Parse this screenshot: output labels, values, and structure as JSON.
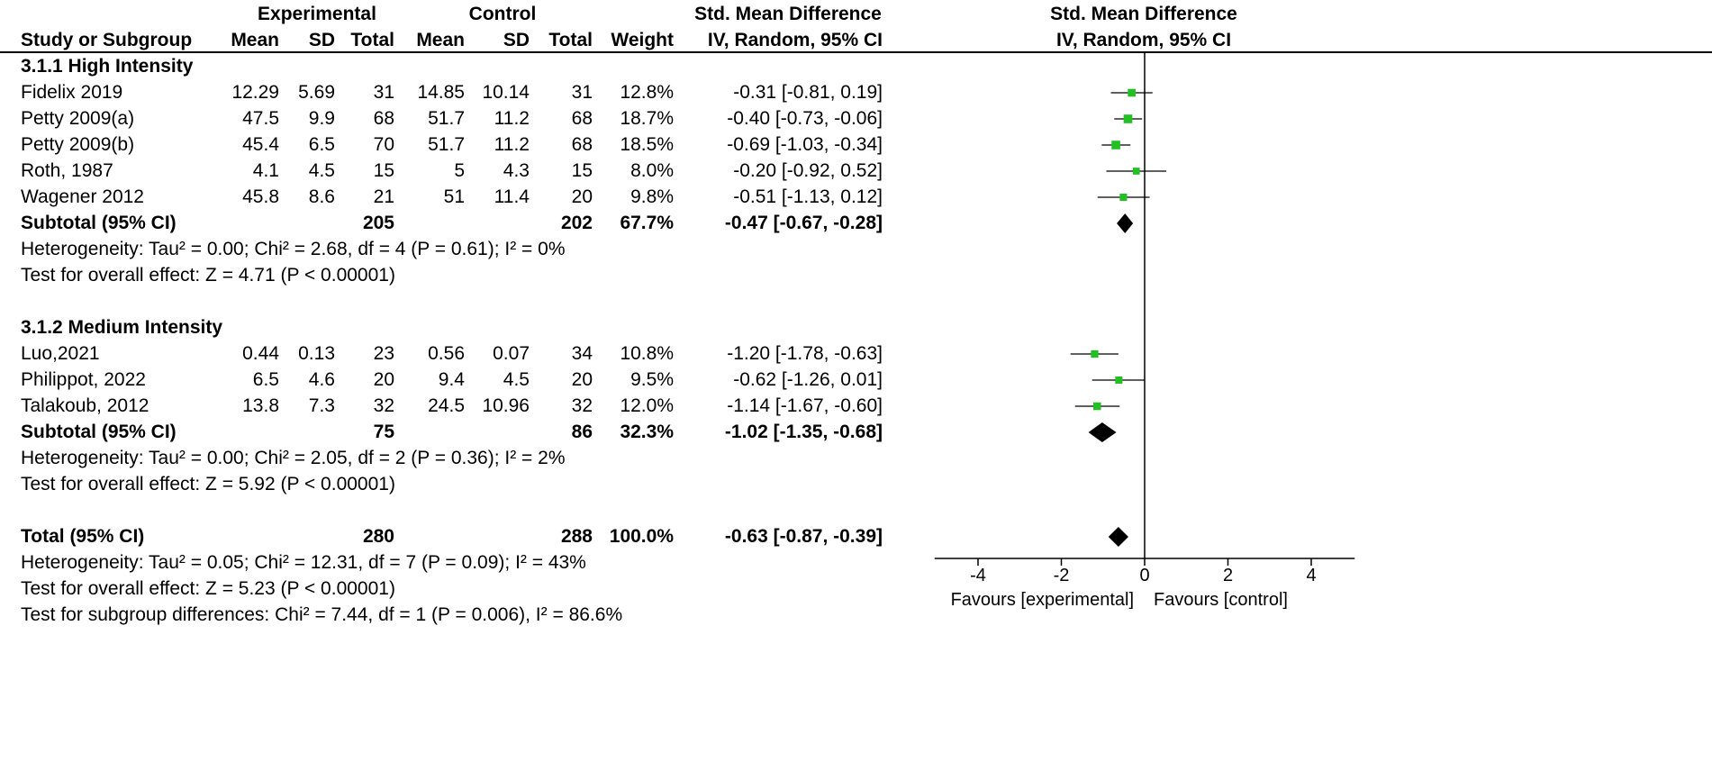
{
  "headers": {
    "group_experimental": "Experimental",
    "group_control": "Control",
    "group_smd": "Std. Mean Difference",
    "col_study": "Study or Subgroup",
    "col_mean": "Mean",
    "col_sd": "SD",
    "col_total": "Total",
    "col_weight": "Weight",
    "col_ci": "IV, Random, 95% CI",
    "plot_title": "Std. Mean Difference",
    "plot_subtitle": "IV, Random, 95% CI"
  },
  "rows": [
    {
      "kind": "section",
      "label": "3.1.1 High Intensity"
    },
    {
      "kind": "study",
      "label": "Fidelix 2019",
      "e_mean": "12.29",
      "e_sd": "5.69",
      "e_total": "31",
      "c_mean": "14.85",
      "c_sd": "10.14",
      "c_total": "31",
      "weight": "12.8%",
      "ci": "-0.31 [-0.81, 0.19]"
    },
    {
      "kind": "study",
      "label": "Petty 2009(a)",
      "e_mean": "47.5",
      "e_sd": "9.9",
      "e_total": "68",
      "c_mean": "51.7",
      "c_sd": "11.2",
      "c_total": "68",
      "weight": "18.7%",
      "ci": "-0.40 [-0.73, -0.06]"
    },
    {
      "kind": "study",
      "label": "Petty 2009(b)",
      "e_mean": "45.4",
      "e_sd": "6.5",
      "e_total": "70",
      "c_mean": "51.7",
      "c_sd": "11.2",
      "c_total": "68",
      "weight": "18.5%",
      "ci": "-0.69 [-1.03, -0.34]"
    },
    {
      "kind": "study",
      "label": "Roth, 1987",
      "e_mean": "4.1",
      "e_sd": "4.5",
      "e_total": "15",
      "c_mean": "5",
      "c_sd": "4.3",
      "c_total": "15",
      "weight": "8.0%",
      "ci": "-0.20 [-0.92, 0.52]"
    },
    {
      "kind": "study",
      "label": "Wagener 2012",
      "e_mean": "45.8",
      "e_sd": "8.6",
      "e_total": "21",
      "c_mean": "51",
      "c_sd": "11.4",
      "c_total": "20",
      "weight": "9.8%",
      "ci": "-0.51 [-1.13, 0.12]"
    },
    {
      "kind": "subtotal",
      "label": "Subtotal (95% CI)",
      "e_total": "205",
      "c_total": "202",
      "weight": "67.7%",
      "ci": "-0.47 [-0.67, -0.28]"
    },
    {
      "kind": "note",
      "label": "Heterogeneity: Tau² = 0.00; Chi² = 2.68, df = 4 (P = 0.61); I² = 0%"
    },
    {
      "kind": "note",
      "label": "Test for overall effect: Z = 4.71 (P < 0.00001)"
    },
    {
      "kind": "blank"
    },
    {
      "kind": "section",
      "label": "3.1.2 Medium Intensity"
    },
    {
      "kind": "study",
      "label": "Luo,2021",
      "e_mean": "0.44",
      "e_sd": "0.13",
      "e_total": "23",
      "c_mean": "0.56",
      "c_sd": "0.07",
      "c_total": "34",
      "weight": "10.8%",
      "ci": "-1.20 [-1.78, -0.63]"
    },
    {
      "kind": "study",
      "label": "Philippot, 2022",
      "e_mean": "6.5",
      "e_sd": "4.6",
      "e_total": "20",
      "c_mean": "9.4",
      "c_sd": "4.5",
      "c_total": "20",
      "weight": "9.5%",
      "ci": "-0.62 [-1.26, 0.01]"
    },
    {
      "kind": "study",
      "label": "Talakoub, 2012",
      "e_mean": "13.8",
      "e_sd": "7.3",
      "e_total": "32",
      "c_mean": "24.5",
      "c_sd": "10.96",
      "c_total": "32",
      "weight": "12.0%",
      "ci": "-1.14 [-1.67, -0.60]"
    },
    {
      "kind": "subtotal",
      "label": "Subtotal (95% CI)",
      "e_total": "75",
      "c_total": "86",
      "weight": "32.3%",
      "ci": "-1.02 [-1.35, -0.68]"
    },
    {
      "kind": "note",
      "label": "Heterogeneity: Tau² = 0.00; Chi² = 2.05, df = 2 (P = 0.36); I² = 2%"
    },
    {
      "kind": "note",
      "label": "Test for overall effect: Z = 5.92 (P < 0.00001)"
    },
    {
      "kind": "blank"
    },
    {
      "kind": "subtotal",
      "label": "Total (95% CI)",
      "e_total": "280",
      "c_total": "288",
      "weight": "100.0%",
      "ci": "-0.63 [-0.87, -0.39]"
    },
    {
      "kind": "note",
      "label": "Heterogeneity: Tau² = 0.05; Chi² = 12.31, df = 7 (P = 0.09); I² = 43%"
    },
    {
      "kind": "note",
      "label": "Test for overall effect: Z = 5.23 (P < 0.00001)"
    },
    {
      "kind": "note",
      "label": "Test for subgroup differences: Chi² = 7.44, df = 1 (P = 0.006), I² = 86.6%"
    }
  ],
  "chart_data": {
    "type": "forest",
    "xlim": [
      -5,
      5
    ],
    "xticks": [
      -4,
      -2,
      0,
      2,
      4
    ],
    "tick_labels": [
      "-4",
      "-2",
      "0",
      "2",
      "4"
    ],
    "favours_left": "Favours [experimental]",
    "favours_right": "Favours [control]",
    "colors": {
      "study_marker": "#22c022",
      "diamond": "#000000",
      "axis": "#000000"
    },
    "studies": [
      {
        "name": "Fidelix 2019",
        "est": -0.31,
        "lo": -0.81,
        "hi": 0.19,
        "weight": 12.8
      },
      {
        "name": "Petty 2009(a)",
        "est": -0.4,
        "lo": -0.73,
        "hi": -0.06,
        "weight": 18.7
      },
      {
        "name": "Petty 2009(b)",
        "est": -0.69,
        "lo": -1.03,
        "hi": -0.34,
        "weight": 18.5
      },
      {
        "name": "Roth, 1987",
        "est": -0.2,
        "lo": -0.92,
        "hi": 0.52,
        "weight": 8.0
      },
      {
        "name": "Wagener 2012",
        "est": -0.51,
        "lo": -1.13,
        "hi": 0.12,
        "weight": 9.8
      },
      {
        "name": "Luo,2021",
        "est": -1.2,
        "lo": -1.78,
        "hi": -0.63,
        "weight": 10.8
      },
      {
        "name": "Philippot, 2022",
        "est": -0.62,
        "lo": -1.26,
        "hi": 0.01,
        "weight": 9.5
      },
      {
        "name": "Talakoub, 2012",
        "est": -1.14,
        "lo": -1.67,
        "hi": -0.6,
        "weight": 12.0
      }
    ],
    "diamonds": [
      {
        "name": "Subtotal (95% CI) — 3.1.1 High Intensity",
        "est": -0.47,
        "lo": -0.67,
        "hi": -0.28
      },
      {
        "name": "Subtotal (95% CI) — 3.1.2 Medium Intensity",
        "est": -1.02,
        "lo": -1.35,
        "hi": -0.68
      },
      {
        "name": "Total (95% CI)",
        "est": -0.63,
        "lo": -0.87,
        "hi": -0.39
      }
    ]
  }
}
